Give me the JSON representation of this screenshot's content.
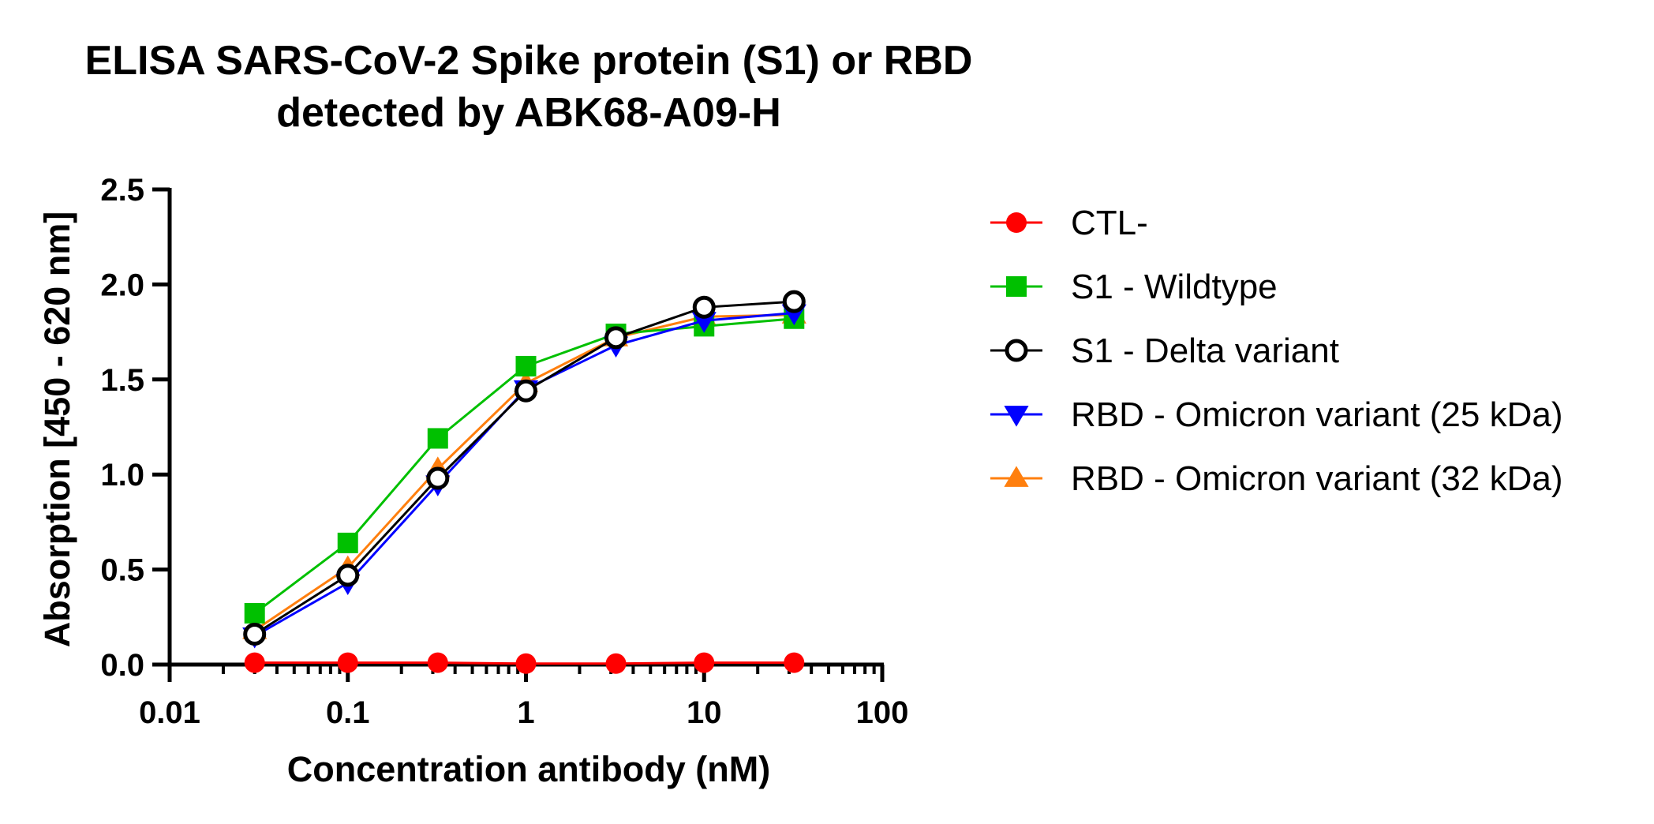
{
  "chart_data": {
    "type": "line",
    "title": [
      "ELISA SARS-CoV-2 Spike protein (S1) or RBD",
      "detected by ABK68-A09-H"
    ],
    "xlabel": "Concentration antibody (nM)",
    "ylabel": "Absorption [450 - 620 nm]",
    "xscale": "log",
    "xlim": [
      0.01,
      100
    ],
    "ylim": [
      0,
      2.5
    ],
    "xticks": [
      {
        "value": 0.01,
        "label": "0.01"
      },
      {
        "value": 0.1,
        "label": "0.1"
      },
      {
        "value": 1,
        "label": "1"
      },
      {
        "value": 10,
        "label": "10"
      },
      {
        "value": 100,
        "label": "100"
      }
    ],
    "yticks": [
      {
        "value": 0,
        "label": "0.0"
      },
      {
        "value": 0.5,
        "label": "0.5"
      },
      {
        "value": 1,
        "label": "1.0"
      },
      {
        "value": 1.5,
        "label": "1.5"
      },
      {
        "value": 2,
        "label": "2.0"
      },
      {
        "value": 2.5,
        "label": "2.5"
      }
    ],
    "grid": false,
    "legend_position": "right",
    "x": [
      0.03,
      0.1,
      0.32,
      1,
      3.2,
      10,
      32
    ],
    "series": [
      {
        "name": "CTL-",
        "color": "#ff0000",
        "marker": "circle-filled",
        "values": [
          0.01,
          0.01,
          0.01,
          0.005,
          0.005,
          0.01,
          0.01
        ]
      },
      {
        "name": "S1 - Wildtype",
        "color": "#00c000",
        "marker": "square-filled",
        "values": [
          0.27,
          0.64,
          1.19,
          1.57,
          1.74,
          1.78,
          1.82
        ]
      },
      {
        "name": "S1 - Delta variant",
        "color": "#000000",
        "marker": "circle-open",
        "values": [
          0.16,
          0.47,
          0.98,
          1.44,
          1.72,
          1.88,
          1.91
        ]
      },
      {
        "name": "RBD - Omicron variant (25 kDa)",
        "color": "#0000ff",
        "marker": "triangle-down",
        "values": [
          0.15,
          0.43,
          0.95,
          1.45,
          1.68,
          1.81,
          1.85
        ]
      },
      {
        "name": "RBD - Omicron variant (32 kDa)",
        "color": "#ff7f0e",
        "marker": "triangle-up",
        "values": [
          0.18,
          0.51,
          1.03,
          1.48,
          1.72,
          1.83,
          1.84
        ]
      }
    ]
  }
}
